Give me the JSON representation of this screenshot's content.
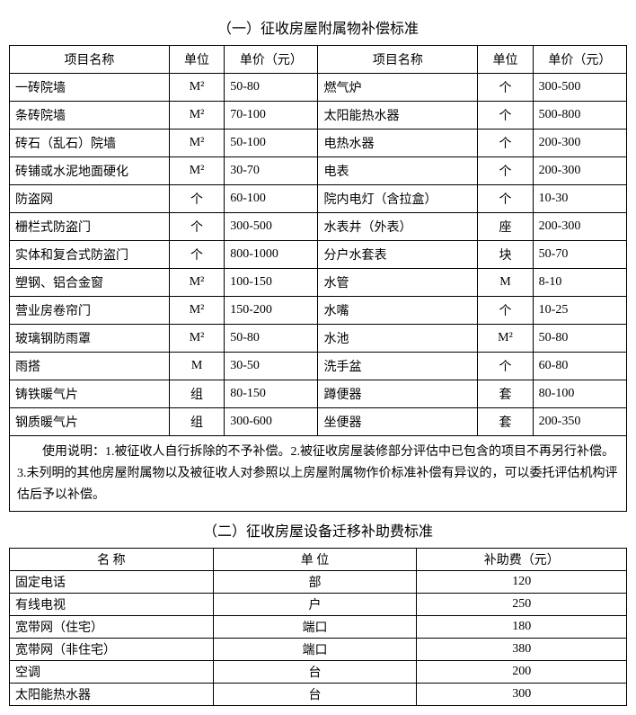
{
  "section1": {
    "title": "（一）征收房屋附属物补偿标准",
    "headers": [
      "项目名称",
      "单位",
      "单价（元）",
      "项目名称",
      "单位",
      "单价（元）"
    ],
    "rows": [
      [
        "一砖院墙",
        "M²",
        "50-80",
        "燃气炉",
        "个",
        "300-500"
      ],
      [
        "条砖院墙",
        "M²",
        "70-100",
        "太阳能热水器",
        "个",
        "500-800"
      ],
      [
        "砖石（乱石）院墙",
        "M²",
        "50-100",
        "电热水器",
        "个",
        "200-300"
      ],
      [
        "砖铺或水泥地面硬化",
        "M²",
        "30-70",
        "电表",
        "个",
        "200-300"
      ],
      [
        "防盗网",
        "个",
        "60-100",
        "院内电灯（含拉盒）",
        "个",
        "10-30"
      ],
      [
        "栅栏式防盗门",
        "个",
        "300-500",
        "水表井（外表）",
        "座",
        "200-300"
      ],
      [
        "实体和复合式防盗门",
        "个",
        "800-1000",
        "分户水套表",
        "块",
        "50-70"
      ],
      [
        "塑钢、铝合金窗",
        "M²",
        "100-150",
        "水管",
        "M",
        "8-10"
      ],
      [
        "营业房卷帘门",
        "M²",
        "150-200",
        "水嘴",
        "个",
        "10-25"
      ],
      [
        "玻璃钢防雨罩",
        "M²",
        "50-80",
        "水池",
        "M²",
        "50-80"
      ],
      [
        "雨搭",
        "M",
        "30-50",
        "洗手盆",
        "个",
        "60-80"
      ],
      [
        "铸铁暖气片",
        "组",
        "80-150",
        "蹲便器",
        "套",
        "80-100"
      ],
      [
        "钢质暖气片",
        "组",
        "300-600",
        "坐便器",
        "套",
        "200-350"
      ]
    ],
    "note": "使用说明：1.被征收人自行拆除的不予补偿。2.被征收房屋装修部分评估中已包含的项目不再另行补偿。3.未列明的其他房屋附属物以及被征收人对参照以上房屋附属物作价标准补偿有异议的，可以委托评估机构评估后予以补偿。"
  },
  "section2": {
    "title": "（二）征收房屋设备迁移补助费标准",
    "headers": [
      "名 称",
      "单 位",
      "补助费（元）"
    ],
    "rows": [
      [
        "固定电话",
        "部",
        "120"
      ],
      [
        "有线电视",
        "户",
        "250"
      ],
      [
        "宽带网（住宅）",
        "端口",
        "180"
      ],
      [
        "宽带网（非住宅）",
        "端口",
        "380"
      ],
      [
        "空调",
        "台",
        "200"
      ],
      [
        "太阳能热水器",
        "台",
        "300"
      ]
    ]
  }
}
